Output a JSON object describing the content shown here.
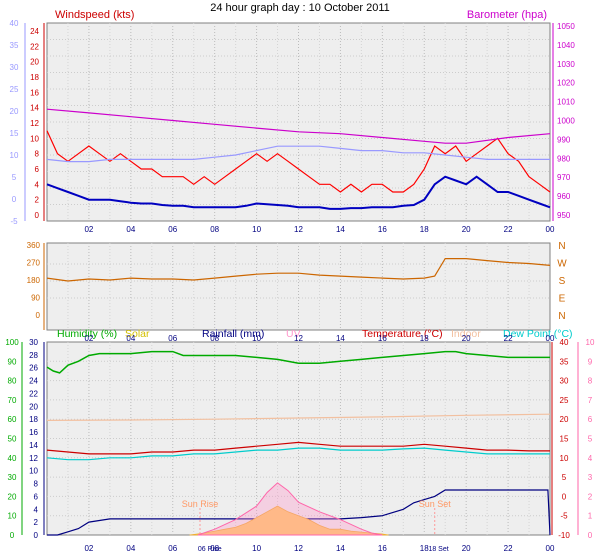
{
  "title": "24 hour graph day : 10 October 2011",
  "x_ticks": [
    "02",
    "04",
    "06",
    "08",
    "10",
    "12",
    "14",
    "16",
    "18",
    "20",
    "22",
    "00"
  ],
  "chart_data": [
    {
      "type": "line",
      "name_key": "wind",
      "left_title": "Windspeed (kts)",
      "right_title": "Barometer (hpa)",
      "left_inner_ticks": [
        "0",
        "2",
        "4",
        "6",
        "8",
        "10",
        "12",
        "14",
        "16",
        "18",
        "20",
        "22",
        "24"
      ],
      "left_outer_ticks": [
        "-5",
        "0",
        "5",
        "10",
        "15",
        "20",
        "25",
        "30",
        "35",
        "40"
      ],
      "right_ticks": [
        "950",
        "960",
        "970",
        "980",
        "990",
        "1000",
        "1010",
        "1020",
        "1030",
        "1040",
        "1050"
      ],
      "ylim_wind": [
        0,
        25
      ],
      "ylim_baro": [
        950,
        1050
      ],
      "ylim_outer": [
        -5,
        40
      ],
      "series": [
        {
          "name": "gust",
          "color": "#ff0000",
          "axis": "wind",
          "x": [
            0,
            0.5,
            1,
            1.5,
            2,
            2.5,
            3,
            3.5,
            4,
            4.5,
            5,
            5.5,
            6,
            6.5,
            7,
            7.5,
            8,
            8.5,
            9,
            9.5,
            10,
            10.5,
            11,
            11.5,
            12,
            12.5,
            13,
            13.5,
            14,
            14.5,
            15,
            15.5,
            16,
            16.5,
            17,
            17.5,
            18,
            18.5,
            19,
            19.5,
            20,
            20.5,
            21,
            21.5,
            22,
            22.5,
            23,
            23.5,
            24
          ],
          "y": [
            11,
            8,
            7,
            8,
            9,
            8,
            7,
            8,
            7,
            6,
            6,
            5,
            5,
            5,
            4,
            5,
            4,
            5,
            6,
            7,
            8,
            7,
            8,
            7,
            6,
            5,
            4,
            4,
            3,
            4,
            3,
            4,
            4,
            3,
            3,
            4,
            6,
            9,
            8,
            9,
            7,
            8,
            9,
            10,
            8,
            7,
            5,
            4,
            3
          ]
        },
        {
          "name": "wind",
          "color": "#0000c0",
          "axis": "wind",
          "x": [
            0,
            0.5,
            1,
            1.5,
            2,
            2.5,
            3,
            3.5,
            4,
            4.5,
            5,
            5.5,
            6,
            6.5,
            7,
            7.5,
            8,
            8.5,
            9,
            9.5,
            10,
            10.5,
            11,
            11.5,
            12,
            12.5,
            13,
            13.5,
            14,
            14.5,
            15,
            15.5,
            16,
            16.5,
            17,
            17.5,
            18,
            18.5,
            19,
            19.5,
            20,
            20.5,
            21,
            21.5,
            22,
            22.5,
            23,
            23.5,
            24
          ],
          "y": [
            4,
            3.5,
            3,
            2.5,
            2,
            2,
            2,
            1.8,
            1.6,
            1.5,
            1.5,
            1.3,
            1.2,
            1.2,
            1,
            1,
            1,
            1,
            1,
            1.2,
            1.5,
            1.4,
            1.3,
            1.2,
            1,
            1,
            1,
            0.8,
            0.8,
            0.9,
            0.9,
            1,
            1,
            1,
            1.2,
            1.3,
            2,
            4,
            5,
            4.5,
            4,
            5,
            4,
            3,
            3,
            2.5,
            2,
            1.5,
            1
          ]
        },
        {
          "name": "barometer",
          "color": "#cc00cc",
          "axis": "baro",
          "x": [
            0,
            2,
            4,
            6,
            8,
            10,
            12,
            14,
            16,
            18,
            19,
            20,
            22,
            24
          ],
          "y": [
            1006,
            1004,
            1002,
            1000,
            998,
            996,
            994,
            993,
            991,
            989,
            988,
            988,
            991,
            993
          ]
        },
        {
          "name": "outer",
          "color": "#9999ff",
          "axis": "outer",
          "x": [
            0,
            1,
            2,
            3,
            4,
            5,
            6,
            7,
            8,
            9,
            10,
            11,
            12,
            13,
            14,
            15,
            16,
            17,
            18,
            19,
            20,
            21,
            22,
            23,
            24
          ],
          "y": [
            9,
            8.5,
            8.5,
            9,
            9,
            9,
            9,
            9,
            9.5,
            10,
            11,
            12,
            12,
            12,
            11.5,
            11,
            11,
            10.5,
            10.5,
            10,
            9.5,
            9,
            9,
            9,
            9
          ]
        }
      ]
    },
    {
      "type": "line",
      "name_key": "direction",
      "left_ticks": [
        "0",
        "90",
        "180",
        "270",
        "360"
      ],
      "right_ticks": [
        "N",
        "E",
        "S",
        "W",
        "N"
      ],
      "ylim": [
        0,
        360
      ],
      "series": [
        {
          "name": "direction",
          "color": "#cc6600",
          "x": [
            0,
            1,
            2,
            3,
            4,
            5,
            6,
            7,
            8,
            9,
            10,
            11,
            12,
            13,
            14,
            15,
            16,
            17,
            18,
            18.5,
            19,
            20,
            21,
            22,
            23,
            24
          ],
          "y": [
            190,
            175,
            185,
            180,
            190,
            185,
            185,
            180,
            190,
            200,
            210,
            215,
            215,
            205,
            200,
            195,
            190,
            185,
            190,
            200,
            290,
            290,
            280,
            270,
            265,
            255
          ]
        }
      ]
    },
    {
      "type": "line",
      "name_key": "climate",
      "legend": [
        {
          "label": "Humidity (%)",
          "color": "#00aa00"
        },
        {
          "label": "Solar",
          "color": "#d4c000"
        },
        {
          "label": "Rainfall (mm)",
          "color": "#000080"
        },
        {
          "label": "UV",
          "color": "#ff99cc"
        },
        {
          "label": "Temperature (°C)",
          "color": "#cc0000"
        },
        {
          "label": "Indoor",
          "color": "#f2c0a0"
        },
        {
          "label": "Dew Point (°C)",
          "color": "#00cccc"
        }
      ],
      "humidity_ticks": [
        "0",
        "10",
        "20",
        "30",
        "40",
        "50",
        "60",
        "70",
        "80",
        "90",
        "100"
      ],
      "rain_ticks": [
        "0",
        "2",
        "4",
        "6",
        "8",
        "10",
        "12",
        "14",
        "16",
        "18",
        "20",
        "22",
        "24",
        "26",
        "28",
        "30"
      ],
      "temp_ticks": [
        "-10",
        "-5",
        "0",
        "5",
        "10",
        "15",
        "20",
        "25",
        "30",
        "35",
        "40"
      ],
      "uv_ticks": [
        "0",
        "1",
        "2",
        "3",
        "4",
        "5",
        "6",
        "7",
        "8",
        "9",
        "10"
      ],
      "annotations": [
        "Sun Rise",
        "Sun Set"
      ],
      "axis_marks": [
        "06 Rise",
        "18 Set"
      ],
      "sunrise_x": 7.3,
      "sunset_x": 18.5,
      "series": [
        {
          "name": "humidity",
          "color": "#00aa00",
          "axis": "humidity",
          "x": [
            0,
            0.3,
            0.6,
            1,
            1.5,
            2,
            2.5,
            3,
            4,
            5,
            6,
            6.5,
            7,
            8,
            9,
            10,
            11,
            12,
            13,
            14,
            15,
            16,
            17,
            18,
            19,
            19.5,
            20,
            21,
            22,
            23,
            24
          ],
          "y": [
            87,
            85,
            84,
            88,
            90,
            93,
            94,
            94,
            94,
            95,
            95,
            93,
            93,
            93,
            93,
            92,
            91,
            89,
            89,
            90,
            91,
            92,
            93,
            94,
            95,
            95,
            94,
            93,
            92,
            92,
            92
          ]
        },
        {
          "name": "indoor",
          "color": "#f2c0a0",
          "axis": "temp",
          "x": [
            0,
            4,
            8,
            12,
            16,
            20,
            24
          ],
          "y": [
            19.7,
            19.8,
            20,
            20.3,
            20.6,
            21,
            21.3
          ]
        },
        {
          "name": "temperature",
          "color": "#cc0000",
          "axis": "temp",
          "x": [
            0,
            1,
            2,
            3,
            4,
            5,
            6,
            7,
            8,
            9,
            10,
            11,
            12,
            13,
            14,
            15,
            16,
            17,
            18,
            19,
            20,
            21,
            22,
            23,
            24
          ],
          "y": [
            12,
            11.5,
            11,
            11,
            11,
            11.5,
            11.5,
            12,
            12,
            12.5,
            13,
            13.5,
            14,
            13.5,
            13,
            13,
            13,
            13,
            13.5,
            13,
            12.5,
            12,
            12,
            11.8,
            11.8
          ]
        },
        {
          "name": "dewpoint",
          "color": "#00cccc",
          "axis": "temp",
          "x": [
            0,
            1,
            2,
            3,
            4,
            5,
            6,
            7,
            8,
            9,
            10,
            11,
            12,
            13,
            14,
            15,
            16,
            17,
            18,
            19,
            20,
            21,
            22,
            23,
            24
          ],
          "y": [
            10,
            9.5,
            9.5,
            10,
            10,
            10.5,
            10.5,
            11,
            11,
            11.5,
            12,
            12,
            12.5,
            12.5,
            12,
            12,
            12,
            12.3,
            12.5,
            12,
            11.5,
            11,
            11,
            11,
            11
          ]
        },
        {
          "name": "rainfall",
          "color": "#000080",
          "axis": "rain",
          "x": [
            0,
            0.5,
            1,
            1.5,
            2,
            3,
            4,
            14,
            15,
            16,
            17,
            17.5,
            18,
            18.5,
            19,
            20,
            21,
            22,
            23,
            23.9,
            24
          ],
          "y": [
            0,
            0,
            0.5,
            1,
            2,
            2.5,
            2.5,
            2.5,
            2.7,
            3,
            4,
            5,
            5.5,
            6,
            7,
            7,
            7,
            7,
            7,
            7,
            0
          ]
        },
        {
          "name": "solar",
          "color": "#ffcc66",
          "axis": "humidity",
          "x": [
            6.8,
            7.5,
            8,
            8.5,
            9,
            9.5,
            10,
            10.5,
            11,
            11.5,
            12,
            12.5,
            13,
            13.5,
            14,
            14.5,
            15,
            15.5,
            16,
            16.3
          ],
          "y": [
            0,
            1,
            2,
            3,
            4,
            6,
            9,
            12,
            15,
            12,
            10,
            8,
            5,
            3,
            3,
            2,
            1.5,
            1,
            0.5,
            0
          ]
        },
        {
          "name": "uv",
          "color": "#ff66aa",
          "axis": "uv",
          "x": [
            7.2,
            8,
            9,
            10,
            10.5,
            11,
            11.5,
            12,
            13,
            14,
            15,
            15.5,
            16
          ],
          "y": [
            0,
            0.3,
            0.8,
            1.5,
            2.2,
            2.7,
            2.3,
            1.7,
            1.2,
            0.8,
            0.3,
            0.1,
            0
          ]
        }
      ]
    }
  ]
}
